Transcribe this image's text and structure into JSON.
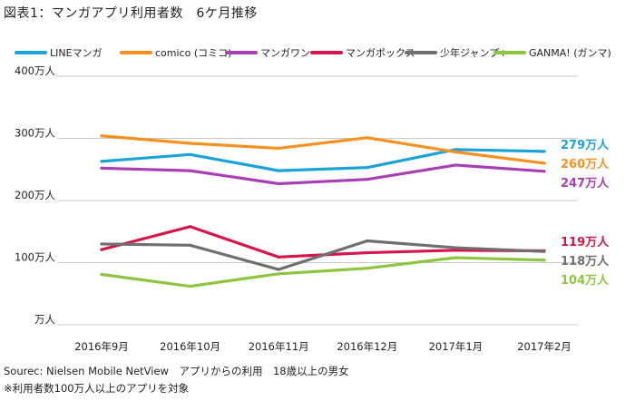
{
  "title": "図表1：マンガアプリ利用者数　6ケ月推移",
  "source_note": "Sourec: Nielsen Mobile NetView　アプリからの利用　18歳以上の男女",
  "condition_note": "※利用者数100万人以上のアプリを対象",
  "chart_data": {
    "type": "line",
    "categories": [
      "2016年9月",
      "2016年10月",
      "2016年11月",
      "2016年12月",
      "2017年1月",
      "2017年2月"
    ],
    "yunit": "万人",
    "ylim": [
      0,
      400
    ],
    "yticks": [
      0,
      100,
      200,
      300,
      400
    ],
    "ytick_labels": [
      "万人",
      "100万人",
      "200万人",
      "300万人",
      "400万人"
    ],
    "grid": true,
    "legend_position": "top",
    "series": [
      {
        "name": "LINEマンガ",
        "color": "#1aa3d9",
        "values": [
          263,
          274,
          248,
          253,
          282,
          279
        ],
        "end_label": "279万人"
      },
      {
        "name": "comico (コミコ)",
        "color": "#f7901e",
        "values": [
          304,
          292,
          284,
          301,
          278,
          260
        ],
        "end_label": "260万人"
      },
      {
        "name": "マンガワン",
        "color": "#a83fb5",
        "values": [
          252,
          248,
          227,
          234,
          257,
          247
        ],
        "end_label": "247万人"
      },
      {
        "name": "マンガボックス",
        "color": "#d6154c",
        "values": [
          121,
          158,
          109,
          116,
          120,
          119
        ],
        "end_label": "119万人"
      },
      {
        "name": "少年ジャンプ+",
        "color": "#6f6f6f",
        "values": [
          130,
          128,
          89,
          135,
          124,
          118
        ],
        "end_label": "118万人"
      },
      {
        "name": "GANMA! (ガンマ)",
        "color": "#8cc63f",
        "values": [
          81,
          62,
          82,
          91,
          108,
          104
        ],
        "end_label": "104万人"
      }
    ]
  }
}
